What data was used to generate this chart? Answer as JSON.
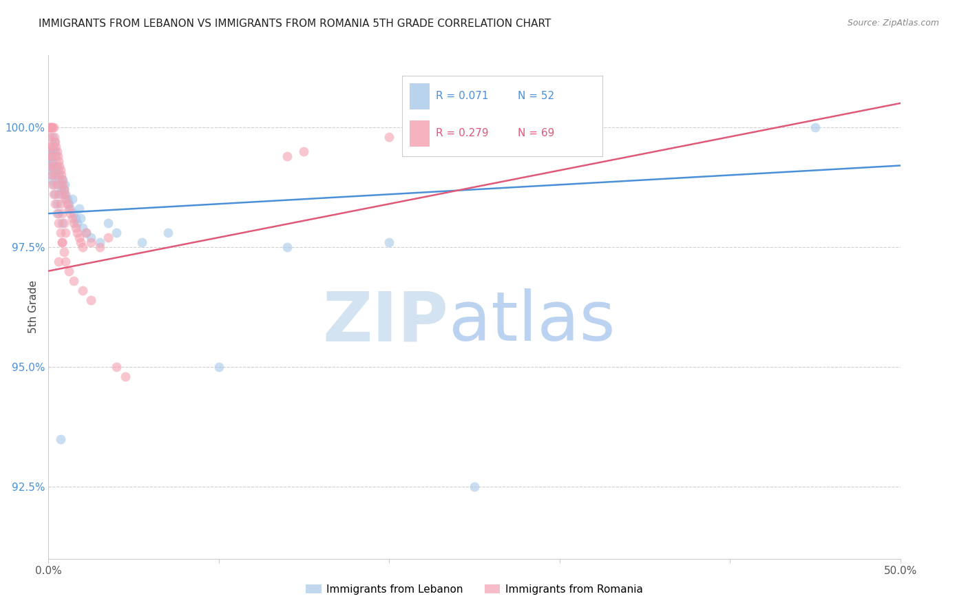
{
  "title": "IMMIGRANTS FROM LEBANON VS IMMIGRANTS FROM ROMANIA 5TH GRADE CORRELATION CHART",
  "source": "Source: ZipAtlas.com",
  "ylabel": "5th Grade",
  "xlim": [
    0.0,
    50.0
  ],
  "ylim": [
    91.0,
    101.5
  ],
  "yticks": [
    92.5,
    95.0,
    97.5,
    100.0
  ],
  "ytick_labels": [
    "92.5%",
    "95.0%",
    "97.5%",
    "100.0%"
  ],
  "xticks": [
    0.0,
    10.0,
    20.0,
    30.0,
    40.0,
    50.0
  ],
  "xtick_labels": [
    "0.0%",
    "",
    "",
    "",
    "",
    "50.0%"
  ],
  "blue_R": 0.071,
  "blue_N": 52,
  "pink_R": 0.279,
  "pink_N": 69,
  "blue_color": "#a8c8e8",
  "pink_color": "#f4a0b0",
  "blue_line_color": "#4a90d9",
  "pink_line_color": "#e05878",
  "legend_label_blue": "Immigrants from Lebanon",
  "legend_label_pink": "Immigrants from Romania",
  "blue_x": [
    0.1,
    0.15,
    0.2,
    0.25,
    0.3,
    0.35,
    0.4,
    0.45,
    0.5,
    0.55,
    0.6,
    0.65,
    0.7,
    0.75,
    0.8,
    0.85,
    0.9,
    0.95,
    1.0,
    1.1,
    1.2,
    1.3,
    1.4,
    1.5,
    1.6,
    1.7,
    1.8,
    1.9,
    2.0,
    2.2,
    2.5,
    3.0,
    3.5,
    4.0,
    5.5,
    7.0,
    10.0,
    14.0,
    20.0,
    25.0,
    45.0,
    0.05,
    0.1,
    0.15,
    0.2,
    0.25,
    0.3,
    0.4,
    0.5,
    0.6,
    0.7,
    0.8
  ],
  "blue_y": [
    99.2,
    99.5,
    99.3,
    99.8,
    99.6,
    99.7,
    99.5,
    99.4,
    99.2,
    99.1,
    99.0,
    98.9,
    98.8,
    98.7,
    98.6,
    98.9,
    98.7,
    98.8,
    98.6,
    98.5,
    98.4,
    98.3,
    98.5,
    98.2,
    98.1,
    98.0,
    98.3,
    98.1,
    97.9,
    97.8,
    97.7,
    97.6,
    98.0,
    97.8,
    97.6,
    97.8,
    95.0,
    97.5,
    97.6,
    92.5,
    100.0,
    99.5,
    99.3,
    99.1,
    98.9,
    99.0,
    98.8,
    98.6,
    98.4,
    98.2,
    93.5,
    98.0
  ],
  "pink_x": [
    0.05,
    0.1,
    0.15,
    0.2,
    0.25,
    0.3,
    0.35,
    0.4,
    0.45,
    0.5,
    0.55,
    0.6,
    0.65,
    0.7,
    0.75,
    0.8,
    0.85,
    0.9,
    0.95,
    1.0,
    1.1,
    1.2,
    1.3,
    1.4,
    1.5,
    1.6,
    1.7,
    1.8,
    1.9,
    2.0,
    2.2,
    2.5,
    3.0,
    3.5,
    0.05,
    0.1,
    0.15,
    0.2,
    0.25,
    0.3,
    0.4,
    0.5,
    0.6,
    0.7,
    0.8,
    0.9,
    1.0,
    1.2,
    1.5,
    2.0,
    2.5,
    0.05,
    0.1,
    0.2,
    0.3,
    0.4,
    0.5,
    0.6,
    0.7,
    0.8,
    0.9,
    1.0,
    4.0,
    15.0,
    20.0,
    4.5,
    14.0,
    0.6,
    0.8
  ],
  "pink_y": [
    100.0,
    100.0,
    100.0,
    100.0,
    100.0,
    100.0,
    99.8,
    99.7,
    99.6,
    99.5,
    99.4,
    99.3,
    99.2,
    99.1,
    99.0,
    98.9,
    98.8,
    98.7,
    98.6,
    98.5,
    98.4,
    98.3,
    98.2,
    98.1,
    98.0,
    97.9,
    97.8,
    97.7,
    97.6,
    97.5,
    97.8,
    97.6,
    97.5,
    97.7,
    99.6,
    99.4,
    99.2,
    99.0,
    98.8,
    98.6,
    98.4,
    98.2,
    98.0,
    97.8,
    97.6,
    97.4,
    97.2,
    97.0,
    96.8,
    96.6,
    96.4,
    99.8,
    99.6,
    99.4,
    99.2,
    99.0,
    98.8,
    98.6,
    98.4,
    98.2,
    98.0,
    97.8,
    95.0,
    99.5,
    99.8,
    94.8,
    99.4,
    97.2,
    97.6
  ]
}
